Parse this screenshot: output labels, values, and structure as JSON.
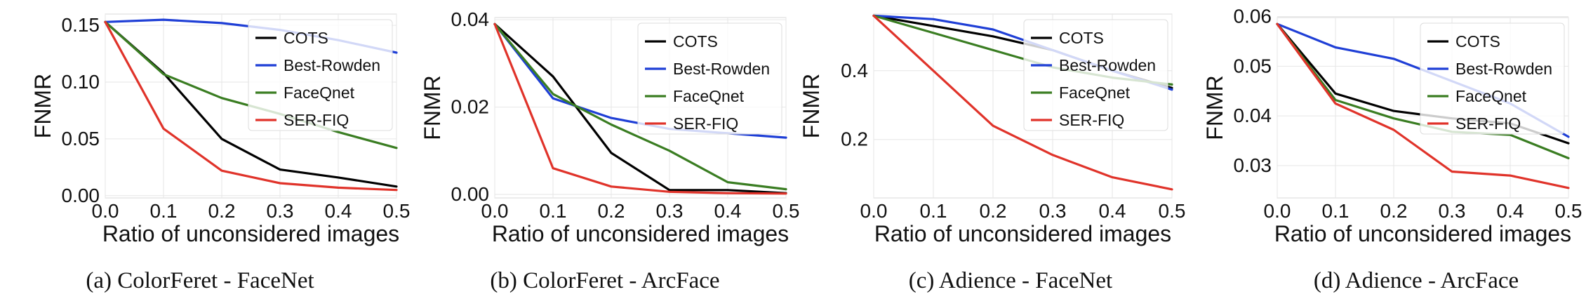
{
  "figure": {
    "captions": [
      "(a) ColorFeret - FaceNet",
      "(b) ColorFeret - ArcFace",
      "(c) Adience - FaceNet",
      "(d) Adience - ArcFace"
    ]
  },
  "chart_data": [
    {
      "type": "line",
      "title": "",
      "xlabel": "Ratio of unconsidered images",
      "ylabel": "FNMR",
      "x": [
        0.0,
        0.1,
        0.2,
        0.3,
        0.4,
        0.5
      ],
      "xlim": [
        0.0,
        0.5
      ],
      "xticks": [
        "0.0",
        "0.1",
        "0.2",
        "0.3",
        "0.4",
        "0.5"
      ],
      "ylim": [
        -0.002,
        0.16
      ],
      "yticks": [
        0.0,
        0.05,
        0.1,
        0.15
      ],
      "yticklabels": [
        "0.00",
        "0.05",
        "0.10",
        "0.15"
      ],
      "grid": true,
      "legend": "top-right",
      "series": [
        {
          "name": "COTS",
          "color": "#000000",
          "values": [
            0.153,
            0.108,
            0.05,
            0.023,
            0.016,
            0.008
          ]
        },
        {
          "name": "Best-Rowden",
          "color": "#1f3fd6",
          "values": [
            0.153,
            0.155,
            0.152,
            0.146,
            0.137,
            0.126
          ]
        },
        {
          "name": "FaceQnet",
          "color": "#3a7d22",
          "values": [
            0.153,
            0.107,
            0.086,
            0.072,
            0.056,
            0.042
          ]
        },
        {
          "name": "SER-FIQ",
          "color": "#e0332a",
          "values": [
            0.153,
            0.059,
            0.022,
            0.011,
            0.007,
            0.005
          ]
        }
      ]
    },
    {
      "type": "line",
      "title": "",
      "xlabel": "Ratio of unconsidered images",
      "ylabel": "FNMR",
      "x": [
        0.0,
        0.1,
        0.2,
        0.3,
        0.4,
        0.5
      ],
      "xlim": [
        0.0,
        0.5
      ],
      "xticks": [
        "0.0",
        "0.1",
        "0.2",
        "0.3",
        "0.4",
        "0.5"
      ],
      "ylim": [
        -0.0008,
        0.0405
      ],
      "yticks": [
        0.0,
        0.02,
        0.04
      ],
      "yticklabels": [
        "0.00",
        "0.02",
        "0.04"
      ],
      "grid": true,
      "legend": "top-right",
      "series": [
        {
          "name": "COTS",
          "color": "#000000",
          "values": [
            0.039,
            0.027,
            0.0095,
            0.001,
            0.001,
            0.0003
          ]
        },
        {
          "name": "Best-Rowden",
          "color": "#1f3fd6",
          "values": [
            0.039,
            0.022,
            0.0175,
            0.015,
            0.014,
            0.013
          ]
        },
        {
          "name": "FaceQnet",
          "color": "#3a7d22",
          "values": [
            0.039,
            0.023,
            0.016,
            0.01,
            0.0028,
            0.0012
          ]
        },
        {
          "name": "SER-FIQ",
          "color": "#e0332a",
          "values": [
            0.039,
            0.006,
            0.0018,
            0.0006,
            0.0003,
            0.0002
          ]
        }
      ]
    },
    {
      "type": "line",
      "title": "",
      "xlabel": "Ratio of unconsidered images",
      "ylabel": "FNMR",
      "x": [
        0.0,
        0.1,
        0.2,
        0.3,
        0.4,
        0.5
      ],
      "xlim": [
        0.0,
        0.5
      ],
      "xticks": [
        "0.0",
        "0.1",
        "0.2",
        "0.3",
        "0.4",
        "0.5"
      ],
      "ylim": [
        0.03,
        0.565
      ],
      "yticks": [
        0.2,
        0.4
      ],
      "yticklabels": [
        "0.2",
        "0.4"
      ],
      "grid": true,
      "legend": "top-right",
      "series": [
        {
          "name": "COTS",
          "color": "#000000",
          "values": [
            0.56,
            0.53,
            0.5,
            0.46,
            0.4,
            0.35
          ]
        },
        {
          "name": "Best-Rowden",
          "color": "#1f3fd6",
          "values": [
            0.56,
            0.55,
            0.52,
            0.46,
            0.4,
            0.345
          ]
        },
        {
          "name": "FaceQnet",
          "color": "#3a7d22",
          "values": [
            0.56,
            0.51,
            0.46,
            0.41,
            0.38,
            0.36
          ]
        },
        {
          "name": "SER-FIQ",
          "color": "#e0332a",
          "values": [
            0.56,
            0.4,
            0.24,
            0.155,
            0.09,
            0.055
          ]
        }
      ]
    },
    {
      "type": "line",
      "title": "",
      "xlabel": "Ratio of unconsidered images",
      "ylabel": "FNMR",
      "x": [
        0.0,
        0.1,
        0.2,
        0.3,
        0.4,
        0.5
      ],
      "xlim": [
        0.0,
        0.5
      ],
      "xticks": [
        "0.0",
        "0.1",
        "0.2",
        "0.3",
        "0.4",
        "0.5"
      ],
      "ylim": [
        0.0235,
        0.0598
      ],
      "yticks": [
        0.03,
        0.04,
        0.05,
        0.06
      ],
      "yticklabels": [
        "0.03",
        "0.04",
        "0.05",
        "0.06"
      ],
      "grid": true,
      "legend": "top-right",
      "series": [
        {
          "name": "COTS",
          "color": "#000000",
          "values": [
            0.0585,
            0.0445,
            0.041,
            0.0395,
            0.0385,
            0.0345
          ]
        },
        {
          "name": "Best-Rowden",
          "color": "#1f3fd6",
          "values": [
            0.0585,
            0.0538,
            0.0515,
            0.047,
            0.0425,
            0.0358
          ]
        },
        {
          "name": "FaceQnet",
          "color": "#3a7d22",
          "values": [
            0.0585,
            0.0432,
            0.0395,
            0.0368,
            0.0362,
            0.0315
          ]
        },
        {
          "name": "SER-FIQ",
          "color": "#e0332a",
          "values": [
            0.0585,
            0.0425,
            0.0372,
            0.0288,
            0.028,
            0.0255
          ]
        }
      ]
    }
  ]
}
